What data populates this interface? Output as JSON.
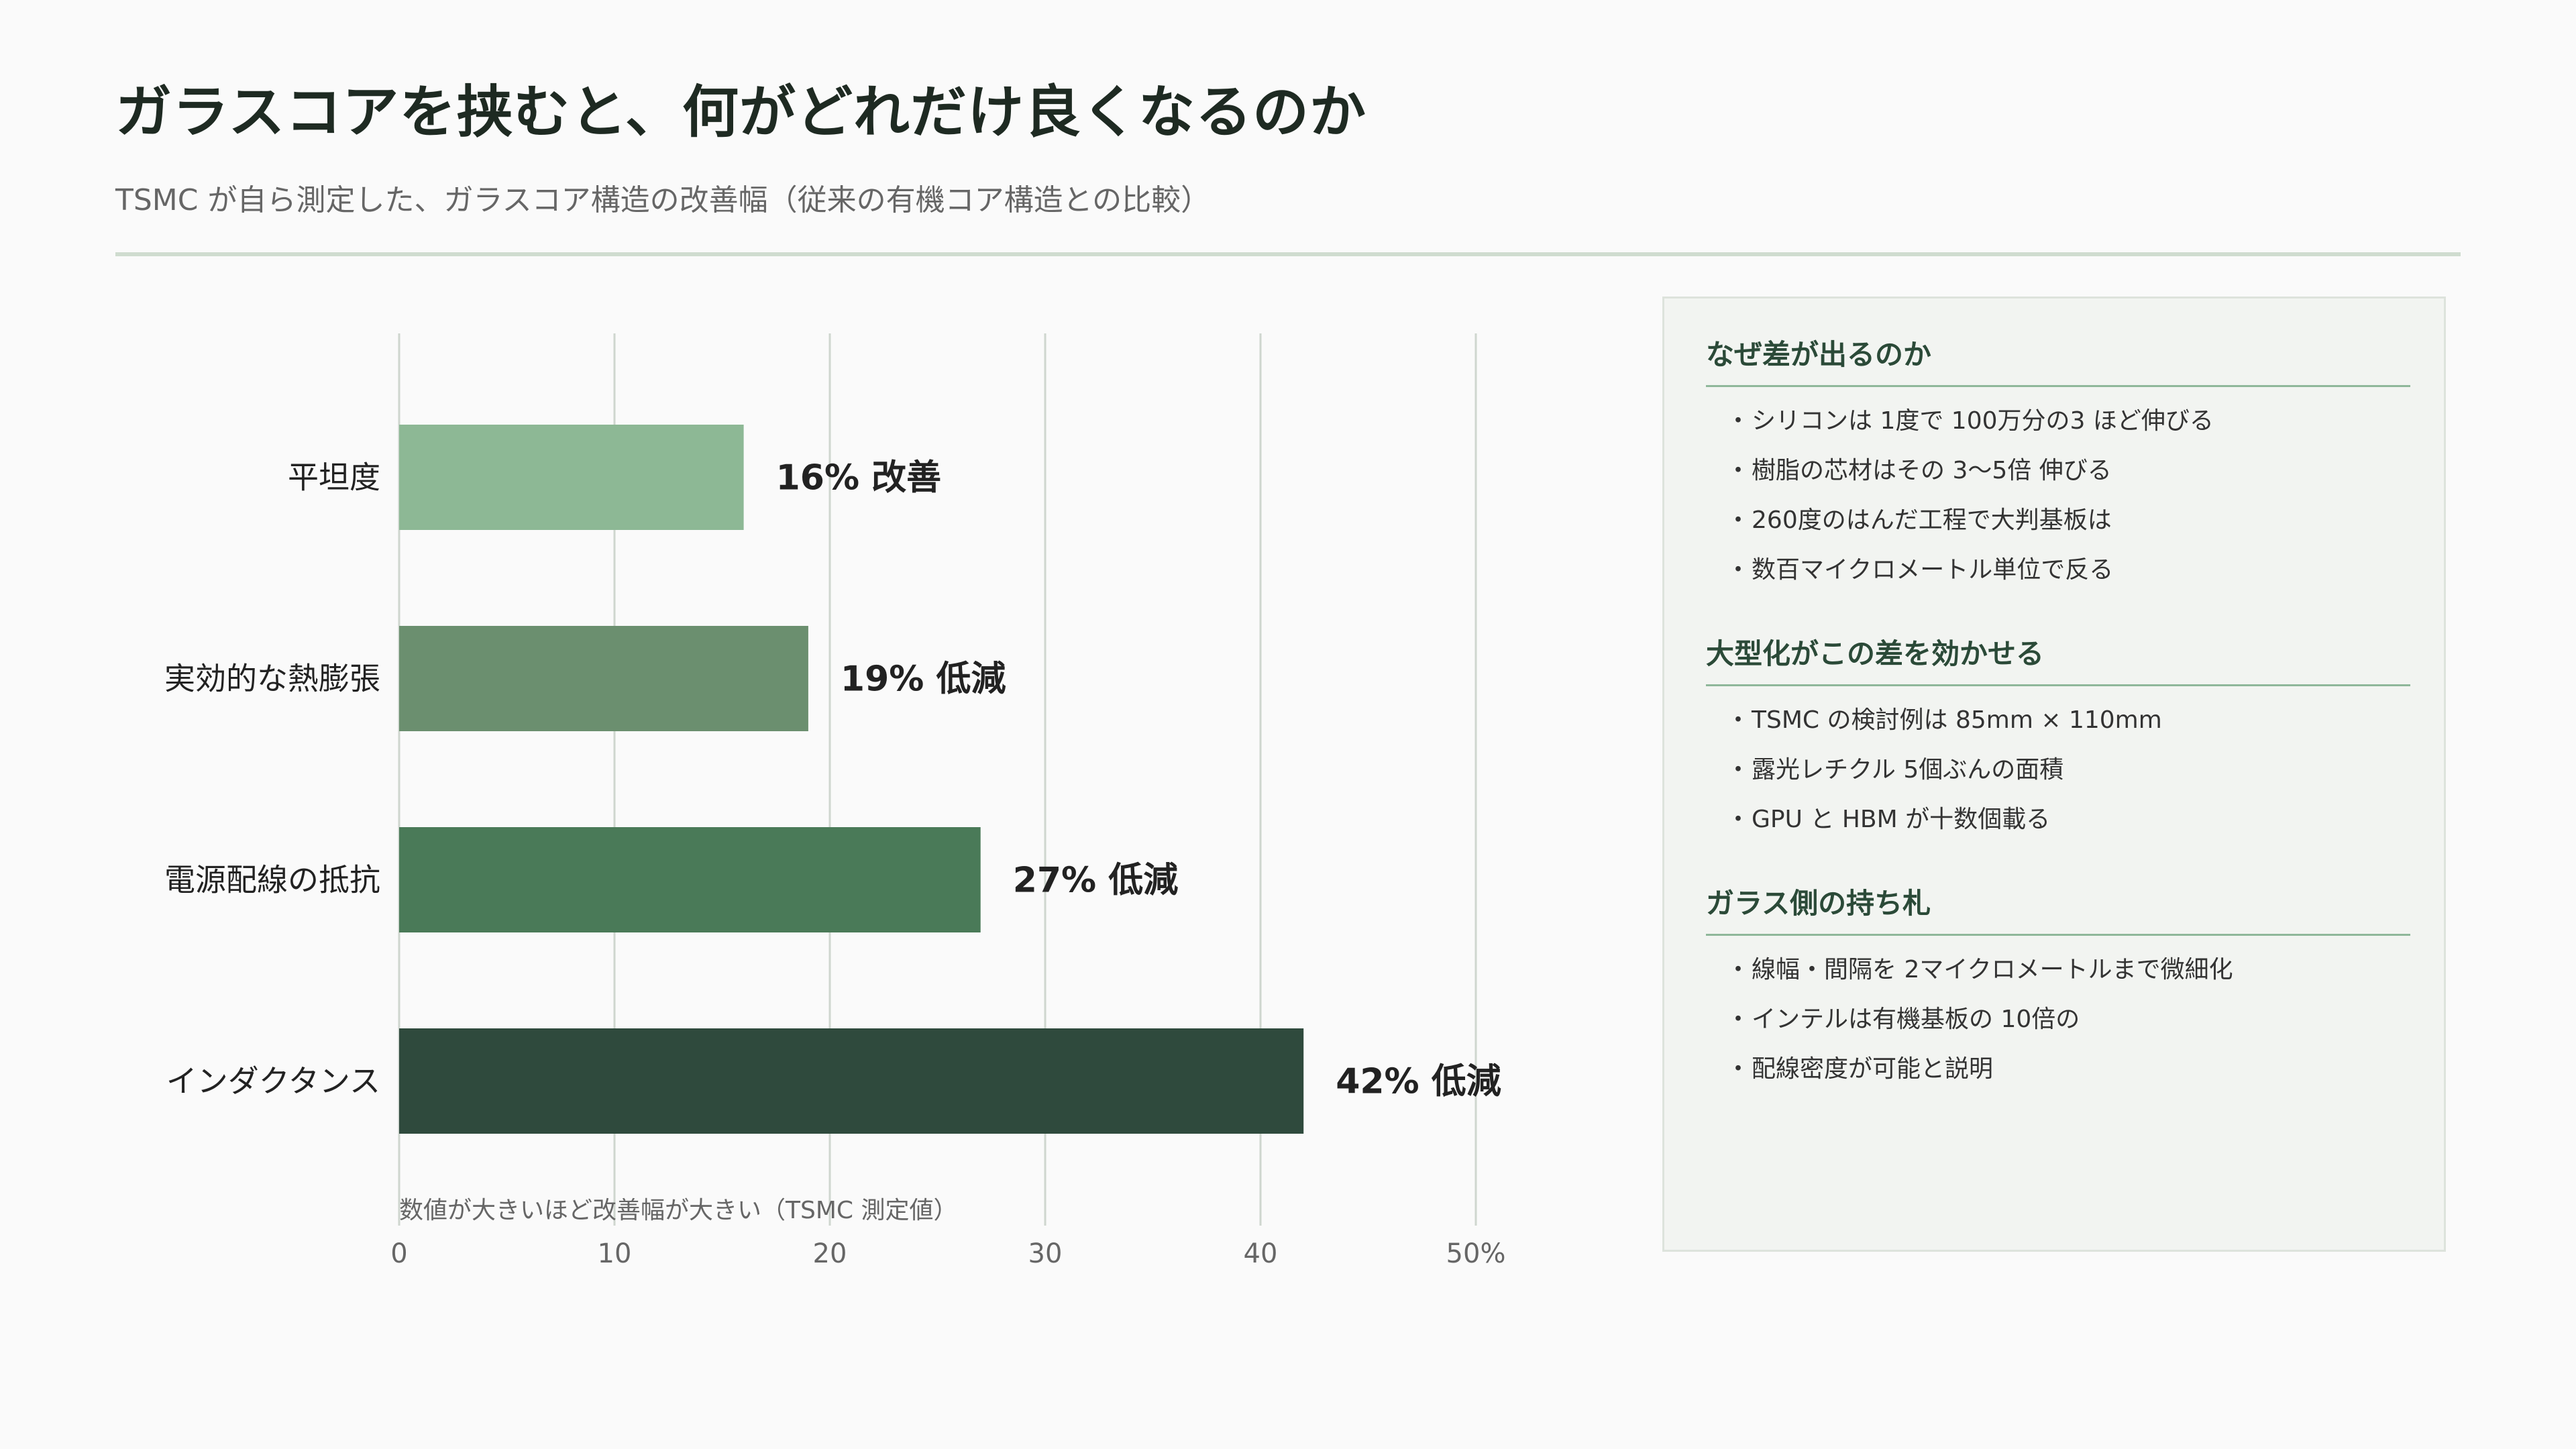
{
  "header": {
    "title": "ガラスコアを挟むと、何がどれだけ良くなるのか",
    "subtitle": "TSMC が自ら測定した、ガラスコア構造の改善幅（従来の有機コア構造との比較）"
  },
  "chart_data": {
    "type": "bar",
    "orientation": "horizontal",
    "categories": [
      "平坦度",
      "実効的な熱膨張",
      "電源配線の抵抗",
      "インダクタンス"
    ],
    "values": [
      16,
      19,
      27,
      42
    ],
    "value_labels": [
      "16%  改善",
      "19%  低減",
      "27%  低減",
      "42%  低減"
    ],
    "colors": [
      "#8db895",
      "#6b8f6f",
      "#4a7a58",
      "#2f4a3d"
    ],
    "xlim": [
      0,
      50
    ],
    "x_ticks": [
      0,
      10,
      20,
      30,
      40,
      50
    ],
    "x_tick_labels": [
      "0",
      "10",
      "20",
      "30",
      "40",
      "50%"
    ],
    "grid": true,
    "note": "数値が大きいほど改善幅が大きい（TSMC 測定値）"
  },
  "panel": {
    "sections": [
      {
        "heading": "なぜ差が出るのか",
        "items": [
          "シリコンは 1度で 100万分の3 ほど伸びる",
          "樹脂の芯材はその 3〜5倍 伸びる",
          "260度のはんだ工程で大判基板は",
          "数百マイクロメートル単位で反る"
        ]
      },
      {
        "heading": "大型化がこの差を効かせる",
        "items": [
          "TSMC の検討例は 85mm × 110mm",
          "露光レチクル 5個ぶんの面積",
          "GPU と HBM が十数個載る"
        ]
      },
      {
        "heading": "ガラス側の持ち札",
        "items": [
          "線幅・間隔を 2マイクロメートルまで微細化",
          "インテルは有機基板の 10倍の",
          "配線密度が可能と説明"
        ]
      }
    ]
  }
}
